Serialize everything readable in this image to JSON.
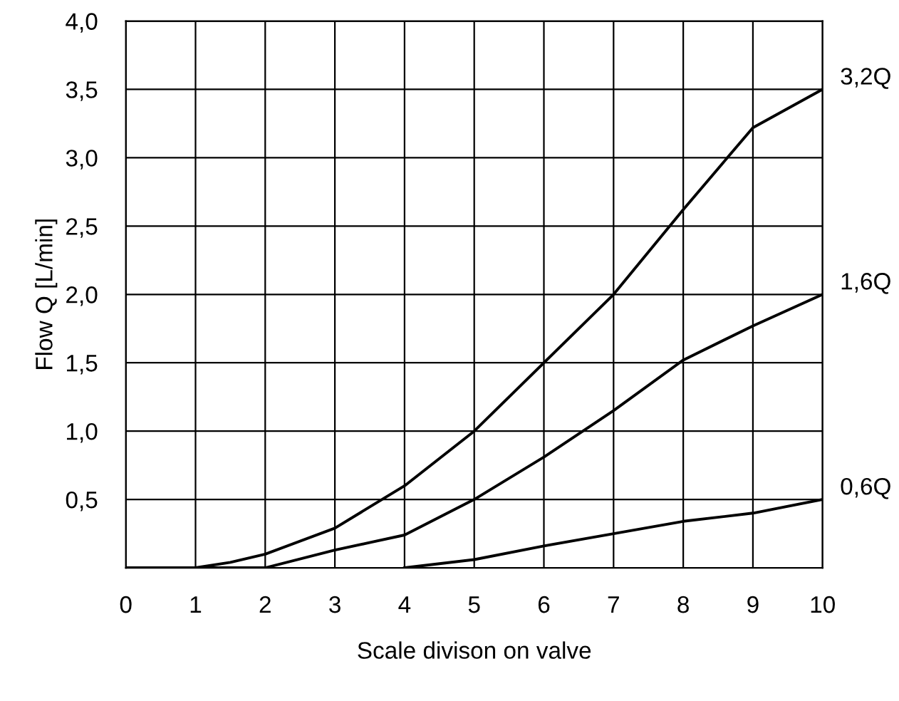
{
  "chart_data": {
    "type": "line",
    "xlabel": "Scale divison on valve",
    "ylabel": "Flow Q [L/min]",
    "xlim": [
      0,
      10
    ],
    "ylim": [
      0,
      4
    ],
    "xticks": [
      0,
      1,
      2,
      3,
      4,
      5,
      6,
      7,
      8,
      9,
      10
    ],
    "yticks": [
      {
        "value": 0,
        "label": null
      },
      {
        "value": 0.5,
        "label": "0,5"
      },
      {
        "value": 1,
        "label": "1,0"
      },
      {
        "value": 1.5,
        "label": "1,5"
      },
      {
        "value": 2,
        "label": "2,0"
      },
      {
        "value": 2.5,
        "label": "2,5"
      },
      {
        "value": 3,
        "label": "3,0"
      },
      {
        "value": 3.5,
        "label": "3,5"
      },
      {
        "value": 4,
        "label": "4,0"
      }
    ],
    "grid": true,
    "legend": false,
    "series": [
      {
        "name": "3,2Q",
        "color": "#000000",
        "x": [
          0,
          1,
          1.5,
          2,
          3,
          4,
          5,
          6,
          7,
          8,
          9,
          10
        ],
        "values": [
          0,
          0,
          0.04,
          0.1,
          0.29,
          0.6,
          1.0,
          1.5,
          2.0,
          2.62,
          3.22,
          3.5
        ]
      },
      {
        "name": "1,6Q",
        "color": "#000000",
        "x": [
          0,
          2,
          3,
          4,
          5,
          6,
          7,
          8,
          9,
          10
        ],
        "values": [
          0,
          0,
          0.13,
          0.24,
          0.5,
          0.81,
          1.15,
          1.52,
          1.77,
          2.0
        ]
      },
      {
        "name": "0,6Q",
        "color": "#000000",
        "x": [
          4,
          5,
          6,
          7,
          8,
          9,
          10
        ],
        "values": [
          0,
          0.06,
          0.16,
          0.25,
          0.34,
          0.4,
          0.5
        ]
      }
    ]
  }
}
